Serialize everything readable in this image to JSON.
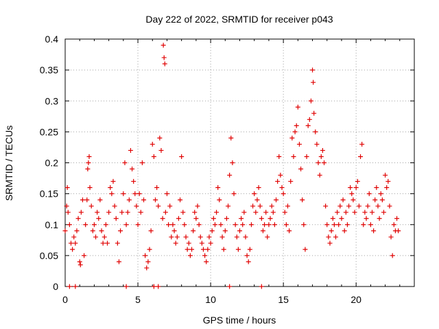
{
  "chart_data": {
    "type": "scatter",
    "title": "Day 222 of 2022, SRMTID for receiver p043",
    "xlabel": "GPS time / hours",
    "ylabel": "SRMTID / TECUs",
    "xlim": [
      0,
      24
    ],
    "ylim": [
      0,
      0.4
    ],
    "x_ticks": [
      0,
      5,
      10,
      15,
      20
    ],
    "x_tick_labels": [
      "0",
      "5",
      "10",
      "15",
      "20"
    ],
    "y_ticks": [
      0,
      0.05,
      0.1,
      0.15,
      0.2,
      0.25,
      0.3,
      0.35,
      0.4
    ],
    "y_tick_labels": [
      "0",
      "0.05",
      "0.1",
      "0.15",
      "0.2",
      "0.25",
      "0.3",
      "0.35",
      "0.4"
    ],
    "grid": true,
    "marker": "+",
    "colors": {
      "series": "#e00000",
      "axis": "#000000",
      "grid": "#a0a0a0"
    },
    "series": [
      {
        "name": "SRMTID p043",
        "points": [
          [
            0.0,
            0.09
          ],
          [
            0.1,
            0.13
          ],
          [
            0.15,
            0.16
          ],
          [
            0.2,
            0.12
          ],
          [
            0.3,
            0.1
          ],
          [
            0.4,
            0.07
          ],
          [
            0.5,
            0.06
          ],
          [
            0.6,
            0.08
          ],
          [
            0.7,
            0.07
          ],
          [
            0.8,
            0.09
          ],
          [
            0.9,
            0.11
          ],
          [
            1.0,
            0.04
          ],
          [
            1.05,
            0.035
          ],
          [
            1.1,
            0.12
          ],
          [
            1.2,
            0.14
          ],
          [
            1.3,
            0.05
          ],
          [
            1.4,
            0.1
          ],
          [
            1.5,
            0.14
          ],
          [
            1.55,
            0.19
          ],
          [
            1.6,
            0.2
          ],
          [
            1.65,
            0.21
          ],
          [
            1.7,
            0.16
          ],
          [
            1.8,
            0.13
          ],
          [
            1.9,
            0.09
          ],
          [
            2.0,
            0.1
          ],
          [
            2.1,
            0.08
          ],
          [
            2.2,
            0.12
          ],
          [
            2.3,
            0.11
          ],
          [
            2.4,
            0.14
          ],
          [
            2.5,
            0.09
          ],
          [
            2.6,
            0.07
          ],
          [
            2.7,
            0.08
          ],
          [
            2.8,
            0.1
          ],
          [
            2.9,
            0.07
          ],
          [
            3.0,
            0.12
          ],
          [
            3.1,
            0.16
          ],
          [
            3.2,
            0.15
          ],
          [
            3.3,
            0.17
          ],
          [
            3.4,
            0.13
          ],
          [
            3.5,
            0.11
          ],
          [
            3.6,
            0.07
          ],
          [
            3.7,
            0.04
          ],
          [
            3.8,
            0.09
          ],
          [
            3.9,
            0.12
          ],
          [
            4.0,
            0.15
          ],
          [
            4.1,
            0.2
          ],
          [
            4.2,
            0.1
          ],
          [
            4.3,
            0.12
          ],
          [
            4.4,
            0.14
          ],
          [
            4.5,
            0.22
          ],
          [
            4.6,
            0.19
          ],
          [
            4.7,
            0.17
          ],
          [
            4.8,
            0.15
          ],
          [
            4.9,
            0.13
          ],
          [
            5.0,
            0.1
          ],
          [
            5.1,
            0.15
          ],
          [
            5.2,
            0.12
          ],
          [
            5.3,
            0.2
          ],
          [
            5.4,
            0.14
          ],
          [
            5.5,
            0.05
          ],
          [
            5.6,
            0.03
          ],
          [
            5.7,
            0.04
          ],
          [
            5.8,
            0.06
          ],
          [
            5.9,
            0.09
          ],
          [
            6.0,
            0.23
          ],
          [
            6.1,
            0.21
          ],
          [
            6.2,
            0.14
          ],
          [
            6.3,
            0.16
          ],
          [
            6.4,
            0.13
          ],
          [
            6.5,
            0.24
          ],
          [
            6.6,
            0.22
          ],
          [
            6.7,
            0.11
          ],
          [
            6.75,
            0.39
          ],
          [
            6.8,
            0.37
          ],
          [
            6.85,
            0.36
          ],
          [
            6.9,
            0.12
          ],
          [
            7.0,
            0.15
          ],
          [
            7.1,
            0.1
          ],
          [
            7.2,
            0.13
          ],
          [
            7.3,
            0.08
          ],
          [
            7.4,
            0.1
          ],
          [
            7.5,
            0.09
          ],
          [
            7.6,
            0.07
          ],
          [
            7.7,
            0.08
          ],
          [
            7.8,
            0.11
          ],
          [
            7.9,
            0.14
          ],
          [
            8.0,
            0.21
          ],
          [
            8.1,
            0.12
          ],
          [
            8.2,
            0.1
          ],
          [
            8.3,
            0.08
          ],
          [
            8.4,
            0.06
          ],
          [
            8.5,
            0.07
          ],
          [
            8.6,
            0.05
          ],
          [
            8.7,
            0.06
          ],
          [
            8.8,
            0.09
          ],
          [
            8.9,
            0.12
          ],
          [
            9.0,
            0.11
          ],
          [
            9.1,
            0.13
          ],
          [
            9.2,
            0.1
          ],
          [
            9.3,
            0.08
          ],
          [
            9.4,
            0.07
          ],
          [
            9.5,
            0.06
          ],
          [
            9.6,
            0.05
          ],
          [
            9.7,
            0.04
          ],
          [
            9.8,
            0.06
          ],
          [
            9.9,
            0.08
          ],
          [
            10.0,
            0.07
          ],
          [
            10.1,
            0.09
          ],
          [
            10.2,
            0.11
          ],
          [
            10.3,
            0.1
          ],
          [
            10.4,
            0.12
          ],
          [
            10.5,
            0.16
          ],
          [
            10.6,
            0.14
          ],
          [
            10.7,
            0.1
          ],
          [
            10.8,
            0.08
          ],
          [
            10.9,
            0.06
          ],
          [
            11.0,
            0.09
          ],
          [
            11.1,
            0.11
          ],
          [
            11.2,
            0.13
          ],
          [
            11.3,
            0.18
          ],
          [
            11.4,
            0.24
          ],
          [
            11.5,
            0.2
          ],
          [
            11.6,
            0.15
          ],
          [
            11.7,
            0.1
          ],
          [
            11.8,
            0.08
          ],
          [
            11.9,
            0.06
          ],
          [
            12.0,
            0.09
          ],
          [
            12.1,
            0.11
          ],
          [
            12.2,
            0.1
          ],
          [
            12.3,
            0.12
          ],
          [
            12.4,
            0.08
          ],
          [
            12.5,
            0.05
          ],
          [
            12.6,
            0.04
          ],
          [
            12.7,
            0.06
          ],
          [
            12.8,
            0.1
          ],
          [
            12.9,
            0.13
          ],
          [
            13.0,
            0.15
          ],
          [
            13.1,
            0.12
          ],
          [
            13.2,
            0.14
          ],
          [
            13.3,
            0.16
          ],
          [
            13.4,
            0.13
          ],
          [
            13.5,
            0.11
          ],
          [
            13.6,
            0.09
          ],
          [
            13.7,
            0.1
          ],
          [
            13.8,
            0.12
          ],
          [
            13.9,
            0.08
          ],
          [
            14.0,
            0.1
          ],
          [
            14.1,
            0.11
          ],
          [
            14.2,
            0.13
          ],
          [
            14.3,
            0.12
          ],
          [
            14.4,
            0.1
          ],
          [
            14.5,
            0.14
          ],
          [
            14.6,
            0.17
          ],
          [
            14.7,
            0.21
          ],
          [
            14.8,
            0.18
          ],
          [
            14.9,
            0.16
          ],
          [
            15.0,
            0.15
          ],
          [
            15.1,
            0.12
          ],
          [
            15.2,
            0.1
          ],
          [
            15.3,
            0.13
          ],
          [
            15.4,
            0.09
          ],
          [
            15.5,
            0.17
          ],
          [
            15.6,
            0.24
          ],
          [
            15.7,
            0.21
          ],
          [
            15.8,
            0.25
          ],
          [
            15.9,
            0.26
          ],
          [
            16.0,
            0.29
          ],
          [
            16.1,
            0.23
          ],
          [
            16.2,
            0.19
          ],
          [
            16.3,
            0.14
          ],
          [
            16.4,
            0.1
          ],
          [
            16.5,
            0.06
          ],
          [
            16.6,
            0.21
          ],
          [
            16.7,
            0.26
          ],
          [
            16.8,
            0.27
          ],
          [
            16.9,
            0.3
          ],
          [
            17.0,
            0.35
          ],
          [
            17.05,
            0.33
          ],
          [
            17.1,
            0.28
          ],
          [
            17.2,
            0.25
          ],
          [
            17.3,
            0.23
          ],
          [
            17.4,
            0.2
          ],
          [
            17.5,
            0.18
          ],
          [
            17.6,
            0.21
          ],
          [
            17.7,
            0.22
          ],
          [
            17.8,
            0.2
          ],
          [
            17.9,
            0.13
          ],
          [
            18.0,
            0.1
          ],
          [
            18.1,
            0.08
          ],
          [
            18.2,
            0.07
          ],
          [
            18.3,
            0.09
          ],
          [
            18.4,
            0.11
          ],
          [
            18.5,
            0.1
          ],
          [
            18.6,
            0.08
          ],
          [
            18.7,
            0.12
          ],
          [
            18.8,
            0.1
          ],
          [
            18.9,
            0.13
          ],
          [
            19.0,
            0.11
          ],
          [
            19.1,
            0.14
          ],
          [
            19.2,
            0.09
          ],
          [
            19.3,
            0.12
          ],
          [
            19.4,
            0.1
          ],
          [
            19.5,
            0.13
          ],
          [
            19.6,
            0.16
          ],
          [
            19.7,
            0.15
          ],
          [
            19.8,
            0.14
          ],
          [
            19.9,
            0.12
          ],
          [
            20.0,
            0.16
          ],
          [
            20.1,
            0.17
          ],
          [
            20.2,
            0.13
          ],
          [
            20.3,
            0.21
          ],
          [
            20.4,
            0.23
          ],
          [
            20.5,
            0.1
          ],
          [
            20.6,
            0.12
          ],
          [
            20.7,
            0.11
          ],
          [
            20.8,
            0.13
          ],
          [
            20.9,
            0.15
          ],
          [
            21.0,
            0.1
          ],
          [
            21.1,
            0.12
          ],
          [
            21.2,
            0.09
          ],
          [
            21.3,
            0.14
          ],
          [
            21.4,
            0.16
          ],
          [
            21.5,
            0.13
          ],
          [
            21.6,
            0.11
          ],
          [
            21.7,
            0.15
          ],
          [
            21.8,
            0.14
          ],
          [
            21.9,
            0.12
          ],
          [
            22.0,
            0.18
          ],
          [
            22.1,
            0.16
          ],
          [
            22.2,
            0.17
          ],
          [
            22.3,
            0.13
          ],
          [
            22.4,
            0.08
          ],
          [
            22.5,
            0.05
          ],
          [
            22.6,
            0.1
          ],
          [
            22.7,
            0.09
          ],
          [
            22.8,
            0.11
          ],
          [
            22.9,
            0.09
          ],
          [
            0.3,
            0.0
          ],
          [
            0.7,
            0.0
          ],
          [
            4.2,
            0.0
          ],
          [
            6.1,
            0.0
          ],
          [
            6.4,
            0.0
          ],
          [
            11.3,
            0.0
          ],
          [
            13.5,
            0.0
          ]
        ]
      }
    ]
  }
}
